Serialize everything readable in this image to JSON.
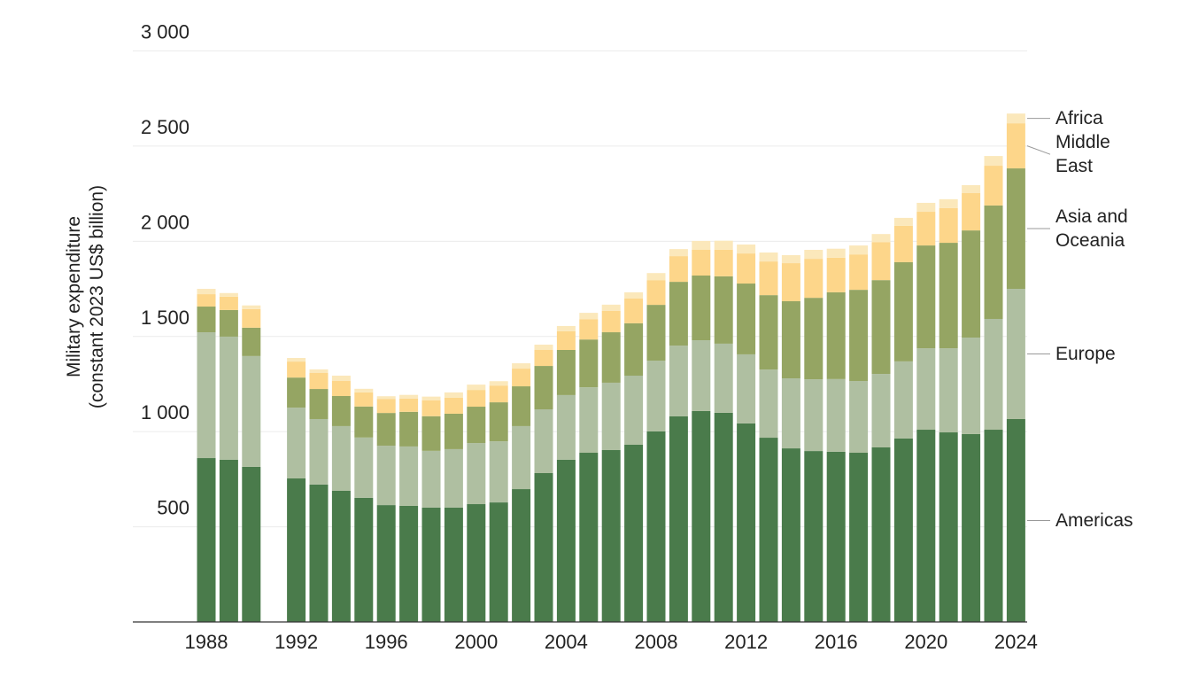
{
  "chart_data": {
    "type": "stacked_bar",
    "ylabel": [
      "Military expenditure",
      "(constant 2023 US$ billion)"
    ],
    "categories": [
      "1988",
      null,
      null,
      null,
      "1992",
      null,
      null,
      null,
      "1996",
      null,
      null,
      null,
      "2000",
      null,
      null,
      null,
      "2004",
      null,
      null,
      null,
      "2008",
      null,
      null,
      null,
      "2012",
      null,
      null,
      null,
      "2016",
      null,
      null,
      null,
      "2020",
      null,
      null,
      null,
      "2024"
    ],
    "ylim": [
      0,
      3000
    ],
    "yticks": [
      500,
      {
        "value": 1000,
        "label": "1 000"
      },
      {
        "value": 1500,
        "label": "1 500"
      },
      {
        "value": 2000,
        "label": "2 000"
      },
      {
        "value": 2500,
        "label": "2 500"
      },
      {
        "value": 3000,
        "label": "3 000"
      }
    ],
    "grid": true,
    "series": [
      {
        "name": "Americas",
        "color": "#4a7b4b",
        "values": [
          861,
          852,
          815,
          null,
          754,
          722,
          689,
          652,
          614,
          610,
          601,
          601,
          619,
          628,
          698,
          782,
          852,
          889,
          903,
          931,
          1001,
          1080,
          1108,
          1099,
          1043,
          968,
          912,
          898,
          894,
          889,
          917,
          964,
          1010,
          996,
          987,
          1010,
          1066
        ]
      },
      {
        "name": "Europe",
        "color": "#afbfa1",
        "values": [
          661,
          647,
          582,
          null,
          372,
          344,
          340,
          317,
          312,
          312,
          298,
          307,
          321,
          321,
          331,
          335,
          340,
          344,
          354,
          363,
          372,
          372,
          372,
          363,
          363,
          358,
          368,
          377,
          382,
          377,
          386,
          405,
          428,
          442,
          507,
          582,
          684
        ]
      },
      {
        "name": "Asia and Oceania",
        "color": "#95a563",
        "values": [
          135,
          140,
          149,
          null,
          158,
          158,
          158,
          163,
          172,
          182,
          182,
          186,
          191,
          205,
          209,
          228,
          237,
          251,
          265,
          275,
          293,
          335,
          340,
          354,
          372,
          391,
          405,
          428,
          456,
          479,
          493,
          521,
          540,
          554,
          563,
          596,
          633
        ]
      },
      {
        "name": "Middle East",
        "color": "#fdd68a",
        "values": [
          65,
          70,
          98,
          null,
          84,
          84,
          79,
          74,
          74,
          70,
          84,
          84,
          88,
          88,
          93,
          84,
          98,
          107,
          112,
          130,
          130,
          135,
          135,
          140,
          158,
          177,
          200,
          205,
          182,
          186,
          200,
          191,
          177,
          182,
          196,
          209,
          237
        ]
      },
      {
        "name": "Africa",
        "color": "#fbe8bb",
        "values": [
          28,
          19,
          19,
          null,
          19,
          19,
          28,
          19,
          14,
          19,
          19,
          28,
          28,
          23,
          28,
          28,
          28,
          33,
          33,
          33,
          37,
          37,
          47,
          47,
          47,
          47,
          42,
          47,
          47,
          47,
          42,
          42,
          47,
          47,
          42,
          51,
          51
        ]
      }
    ]
  }
}
